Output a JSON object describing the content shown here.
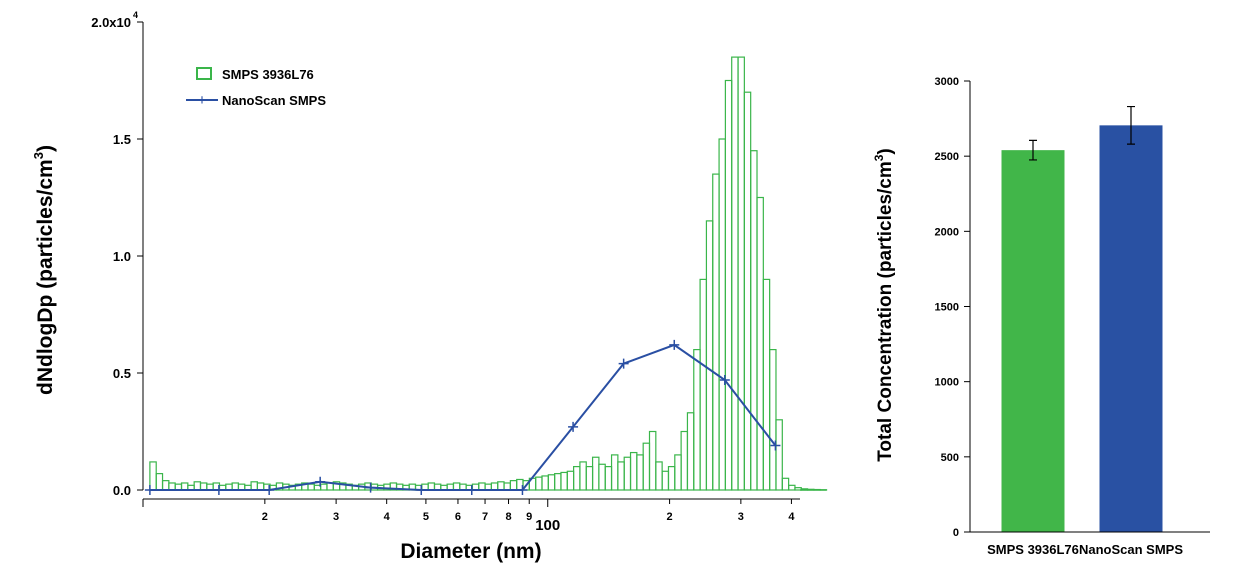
{
  "chart_data": [
    {
      "type": "bar",
      "subtype": "histogram-with-line",
      "xscale": "log",
      "xlabel": "Diameter (nm)",
      "ylabel_main": "dNdlogDp (particles/cm",
      "ylabel_sup": "3",
      "ylabel_close": ")",
      "xlim": [
        10,
        420
      ],
      "ylim": [
        0,
        20000
      ],
      "y_ticks": [
        0,
        5000,
        10000,
        15000,
        20000
      ],
      "y_tick_labels": [
        "0.0",
        "0.5",
        "1.0",
        "1.5",
        "2.0x10"
      ],
      "y_top_exponent": "4",
      "x_ticks": [
        {
          "v": 20,
          "label": "2"
        },
        {
          "v": 30,
          "label": "3"
        },
        {
          "v": 40,
          "label": "4"
        },
        {
          "v": 50,
          "label": "5"
        },
        {
          "v": 60,
          "label": "6"
        },
        {
          "v": 70,
          "label": "7"
        },
        {
          "v": 80,
          "label": "8"
        },
        {
          "v": 90,
          "label": "9"
        },
        {
          "v": 100,
          "label": "100"
        },
        {
          "v": 200,
          "label": "2"
        },
        {
          "v": 300,
          "label": "3"
        },
        {
          "v": 400,
          "label": "4"
        }
      ],
      "grid": false,
      "legend_position": "top-left",
      "series": [
        {
          "name": "SMPS 3936L76",
          "kind": "histogram",
          "color": "#3ab54a",
          "bins_per_decade": 64,
          "x_start": 10.4,
          "values": [
            1200,
            700,
            400,
            300,
            250,
            300,
            200,
            350,
            300,
            250,
            300,
            200,
            250,
            300,
            250,
            200,
            350,
            300,
            250,
            200,
            300,
            250,
            200,
            250,
            300,
            250,
            200,
            250,
            300,
            350,
            300,
            250,
            200,
            250,
            300,
            250,
            200,
            250,
            300,
            250,
            200,
            250,
            200,
            250,
            300,
            250,
            200,
            250,
            300,
            250,
            200,
            250,
            300,
            250,
            300,
            350,
            300,
            400,
            450,
            400,
            500,
            550,
            600,
            650,
            700,
            750,
            800,
            1000,
            1200,
            1000,
            1400,
            1100,
            1000,
            1500,
            1200,
            1400,
            1600,
            1500,
            2000,
            2500,
            1200,
            800,
            1000,
            1500,
            2500,
            3300,
            6000,
            9000,
            11500,
            13500,
            15000,
            17500,
            18500,
            18500,
            17000,
            14500,
            12500,
            9000,
            6000,
            3000,
            500,
            200,
            100,
            50,
            30,
            20,
            10
          ]
        },
        {
          "name": "NanoScan SMPS",
          "kind": "line",
          "color": "#2a4fa3",
          "points": [
            {
              "x": 10.4,
              "y": 0
            },
            {
              "x": 15.4,
              "y": 0
            },
            {
              "x": 20.5,
              "y": 0
            },
            {
              "x": 27.4,
              "y": 350
            },
            {
              "x": 36.5,
              "y": 100
            },
            {
              "x": 48.7,
              "y": 0
            },
            {
              "x": 64.9,
              "y": 0
            },
            {
              "x": 86.6,
              "y": 0
            },
            {
              "x": 115.5,
              "y": 2700
            },
            {
              "x": 154.0,
              "y": 5400
            },
            {
              "x": 205.4,
              "y": 6200
            },
            {
              "x": 273.8,
              "y": 4700
            },
            {
              "x": 365.2,
              "y": 1900
            }
          ]
        }
      ]
    },
    {
      "type": "bar",
      "ylabel_main": "Total Concentration (particles/cm",
      "ylabel_sup": "3",
      "ylabel_close": ")",
      "ylim": [
        0,
        3000
      ],
      "y_ticks": [
        0,
        500,
        1000,
        1500,
        2000,
        2500,
        3000
      ],
      "categories": [
        "SMPS 3936L76",
        "NanoScan SMPS"
      ],
      "values": [
        2540,
        2705
      ],
      "errors": [
        65,
        125
      ],
      "colors": [
        "#41b649",
        "#2951a3"
      ],
      "grid": false
    }
  ]
}
